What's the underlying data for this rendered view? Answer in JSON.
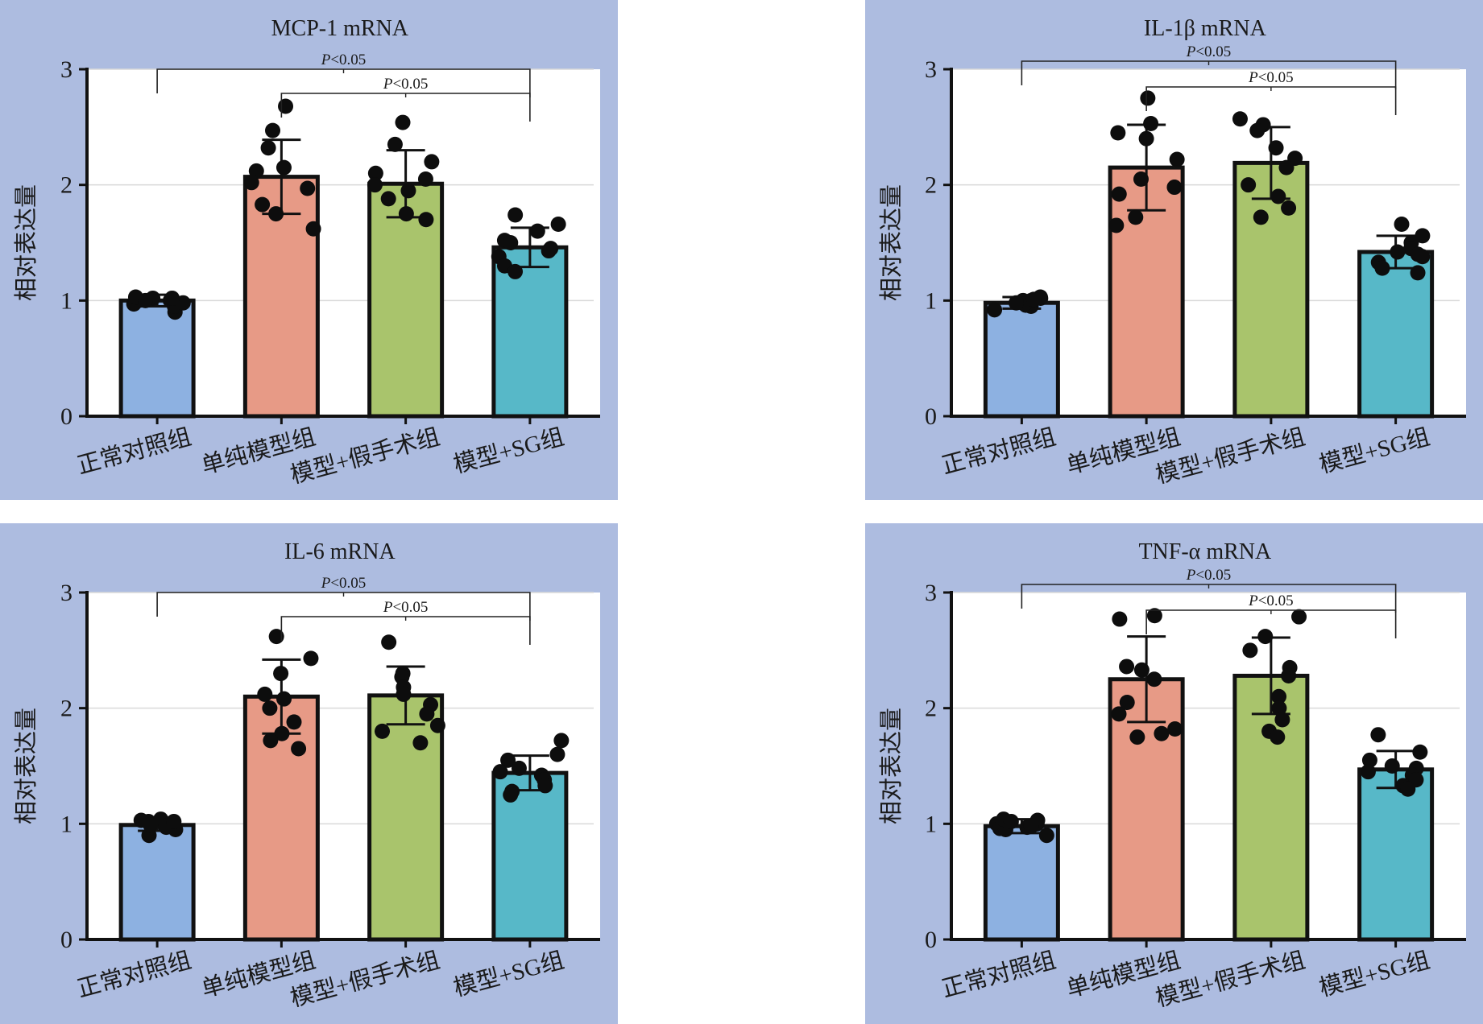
{
  "figure": {
    "panel_bg": "#adbce0",
    "plot_bg": "#ffffff",
    "grid_color": "#d9d9d9",
    "axis_color": "#111111",
    "categories": [
      "正常对照组",
      "单纯模型组",
      "模型+假手术组",
      "模型+SG组"
    ],
    "bar_colors": [
      "#8db1e1",
      "#e79a86",
      "#a9c46c",
      "#57b8c8"
    ],
    "significance_label": "P<0.05"
  },
  "chart_data": [
    {
      "type": "bar",
      "title": "MCP-1 mRNA",
      "ylabel": "相对表达量",
      "ylim": [
        0,
        3
      ],
      "yticks": [
        "0",
        "1",
        "2",
        "3"
      ],
      "categories": [
        "正常对照组",
        "单纯模型组",
        "模型+假手术组",
        "模型+SG组"
      ],
      "values": [
        1.0,
        2.07,
        2.01,
        1.46
      ],
      "error": [
        0.05,
        0.32,
        0.29,
        0.17
      ],
      "points": [
        [
          1.0,
          0.97,
          1.02,
          0.9,
          1.0,
          0.95,
          1.03,
          0.98,
          1.0,
          1.02
        ],
        [
          2.68,
          2.47,
          2.32,
          2.15,
          2.12,
          2.02,
          1.97,
          1.83,
          1.75,
          1.62
        ],
        [
          2.54,
          2.35,
          2.2,
          2.1,
          2.05,
          2.0,
          1.95,
          1.88,
          1.75,
          1.7
        ],
        [
          1.74,
          1.66,
          1.6,
          1.52,
          1.5,
          1.45,
          1.43,
          1.38,
          1.3,
          1.25
        ]
      ],
      "comparisons": [
        {
          "from": 0,
          "to": 3,
          "label": "P<0.05"
        },
        {
          "from": 1,
          "to": 3,
          "label": "P<0.05"
        }
      ]
    },
    {
      "type": "bar",
      "title": "IL-1β mRNA",
      "ylabel": "相对表达量",
      "ylim": [
        0,
        3
      ],
      "yticks": [
        "0",
        "1",
        "2",
        "3"
      ],
      "categories": [
        "正常对照组",
        "单纯模型组",
        "模型+假手术组",
        "模型+SG组"
      ],
      "values": [
        0.98,
        2.15,
        2.19,
        1.42
      ],
      "error": [
        0.05,
        0.37,
        0.31,
        0.14
      ],
      "points": [
        [
          1.0,
          0.96,
          1.02,
          0.92,
          1.0,
          0.95,
          1.03,
          0.97,
          0.98,
          1.01
        ],
        [
          2.75,
          2.53,
          2.45,
          2.4,
          2.22,
          2.05,
          1.98,
          1.92,
          1.72,
          1.65
        ],
        [
          2.57,
          2.52,
          2.47,
          2.32,
          2.23,
          2.15,
          2.0,
          1.9,
          1.8,
          1.72
        ],
        [
          1.66,
          1.56,
          1.5,
          1.45,
          1.42,
          1.4,
          1.38,
          1.33,
          1.28,
          1.24
        ]
      ],
      "comparisons": [
        {
          "from": 0,
          "to": 3,
          "label": "P<0.05"
        },
        {
          "from": 1,
          "to": 3,
          "label": "P<0.05"
        }
      ]
    },
    {
      "type": "bar",
      "title": "IL-6 mRNA",
      "ylabel": "相对表达量",
      "ylim": [
        0,
        3
      ],
      "yticks": [
        "0",
        "1",
        "2",
        "3"
      ],
      "categories": [
        "正常对照组",
        "单纯模型组",
        "模型+假手术组",
        "模型+SG组"
      ],
      "values": [
        0.99,
        2.1,
        2.11,
        1.44
      ],
      "error": [
        0.05,
        0.32,
        0.25,
        0.15
      ],
      "points": [
        [
          1.02,
          0.97,
          1.03,
          0.9,
          1.0,
          0.95,
          1.04,
          0.98,
          0.99,
          1.02
        ],
        [
          2.62,
          2.43,
          2.3,
          2.12,
          2.08,
          2.0,
          1.88,
          1.78,
          1.72,
          1.65
        ],
        [
          2.57,
          2.3,
          2.27,
          2.18,
          2.12,
          2.03,
          1.95,
          1.85,
          1.8,
          1.7
        ],
        [
          1.72,
          1.6,
          1.55,
          1.48,
          1.45,
          1.42,
          1.38,
          1.33,
          1.28,
          1.25
        ]
      ],
      "comparisons": [
        {
          "from": 0,
          "to": 3,
          "label": "P<0.05"
        },
        {
          "from": 1,
          "to": 3,
          "label": "P<0.05"
        }
      ]
    },
    {
      "type": "bar",
      "title": "TNF-α mRNA",
      "ylabel": "相对表达量",
      "ylim": [
        0,
        3
      ],
      "yticks": [
        "0",
        "1",
        "2",
        "3"
      ],
      "categories": [
        "正常对照组",
        "单纯模型组",
        "模型+假手术组",
        "模型+SG组"
      ],
      "values": [
        0.98,
        2.25,
        2.28,
        1.47
      ],
      "error": [
        0.06,
        0.37,
        0.33,
        0.16
      ],
      "points": [
        [
          1.0,
          0.96,
          1.03,
          0.9,
          1.0,
          0.95,
          1.04,
          0.97,
          0.98,
          1.02
        ],
        [
          2.8,
          2.77,
          2.36,
          2.33,
          2.25,
          2.05,
          1.95,
          1.82,
          1.78,
          1.75
        ],
        [
          2.79,
          2.62,
          2.5,
          2.35,
          2.28,
          2.1,
          2.0,
          1.9,
          1.8,
          1.75
        ],
        [
          1.77,
          1.62,
          1.55,
          1.5,
          1.48,
          1.45,
          1.42,
          1.38,
          1.33,
          1.3
        ]
      ],
      "comparisons": [
        {
          "from": 0,
          "to": 3,
          "label": "P<0.05"
        },
        {
          "from": 1,
          "to": 3,
          "label": "P<0.05"
        }
      ]
    }
  ]
}
